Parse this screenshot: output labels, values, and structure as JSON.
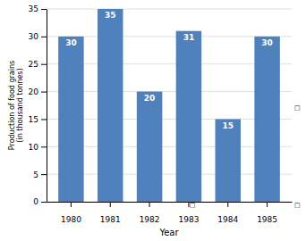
{
  "chart_data": {
    "type": "bar",
    "categories": [
      "1980",
      "1981",
      "1982",
      "1983",
      "1984",
      "1985"
    ],
    "values": [
      30,
      35,
      20,
      31,
      15,
      30
    ],
    "color": "#4f81bd",
    "xlabel": "Year",
    "ylabel": "Production of food grains\n(in thousand tonnes)",
    "ylim": [
      0,
      35
    ],
    "yticks": [
      0,
      5,
      10,
      15,
      20,
      25,
      30,
      35
    ],
    "grid": true,
    "data_labels": true,
    "annotations": [
      "□",
      "□",
      "□"
    ]
  }
}
